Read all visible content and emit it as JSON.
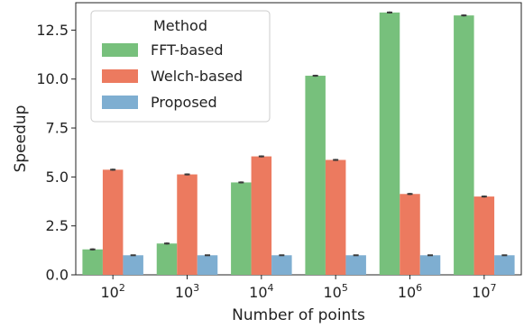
{
  "chart_data": {
    "type": "bar",
    "title": "",
    "xlabel": "Number of points",
    "ylabel": "Speedup",
    "ylim": [
      0,
      13.9
    ],
    "yticks": [
      "0.0",
      "2.5",
      "5.0",
      "7.5",
      "10.0",
      "12.5"
    ],
    "ytick_values": [
      0,
      2.5,
      5,
      7.5,
      10,
      12.5
    ],
    "categories": [
      {
        "base": "10",
        "exp": "2"
      },
      {
        "base": "10",
        "exp": "3"
      },
      {
        "base": "10",
        "exp": "4"
      },
      {
        "base": "10",
        "exp": "5"
      },
      {
        "base": "10",
        "exp": "6"
      },
      {
        "base": "10",
        "exp": "7"
      }
    ],
    "legend": {
      "title": "Method",
      "position": "top-left"
    },
    "series": [
      {
        "name": "FFT-based",
        "color": "#77c07c",
        "values": [
          1.3,
          1.6,
          4.72,
          10.17,
          13.4,
          13.25
        ],
        "errors": [
          0.05,
          0.05,
          0.05,
          0.05,
          0.05,
          0.05
        ]
      },
      {
        "name": "Welch-based",
        "color": "#ec7a5f",
        "values": [
          5.37,
          5.13,
          6.05,
          5.87,
          4.13,
          4.0
        ],
        "errors": [
          0.05,
          0.05,
          0.05,
          0.05,
          0.05,
          0.05
        ]
      },
      {
        "name": "Proposed",
        "color": "#7eaed1",
        "values": [
          1.0,
          1.0,
          1.0,
          1.0,
          1.0,
          1.0
        ],
        "errors": [
          0.03,
          0.03,
          0.03,
          0.03,
          0.03,
          0.03
        ]
      }
    ]
  }
}
